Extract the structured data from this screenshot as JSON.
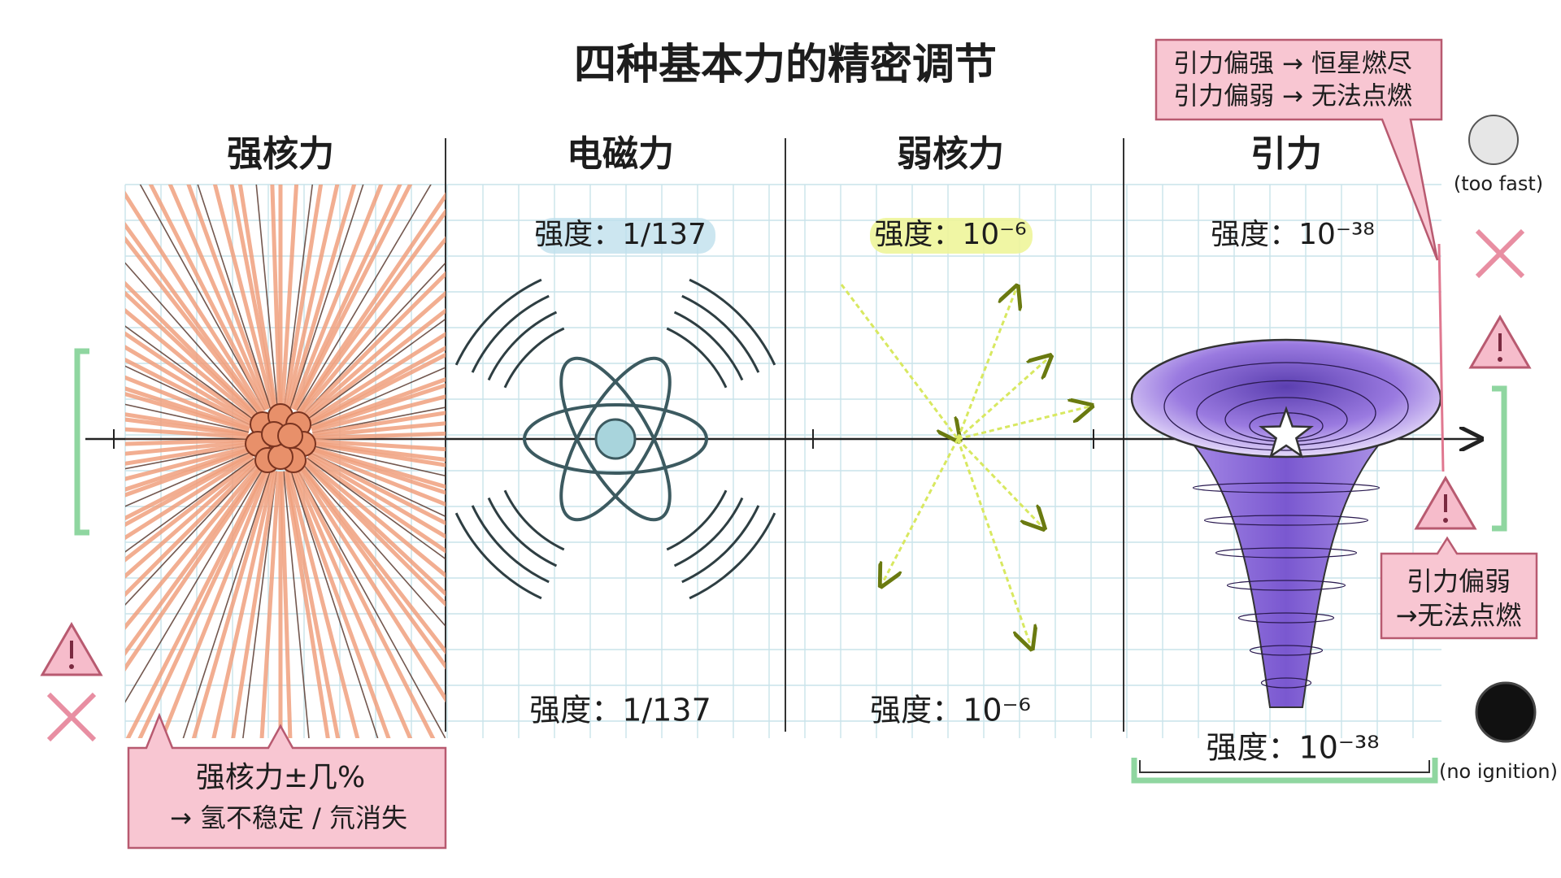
{
  "title": "四种基本力的精密调节",
  "panels": [
    {
      "label": "强核力"
    },
    {
      "label": "电磁力",
      "strength_top": "强度：1/137",
      "strength_bottom": "强度：1/137"
    },
    {
      "label": "弱核力",
      "strength_top": "强度：10⁻⁶",
      "strength_bottom": "强度：10⁻⁶"
    },
    {
      "label": "引力",
      "strength_top": "强度：10⁻³⁸",
      "strength_bottom": "强度：10⁻³⁸"
    }
  ],
  "callouts": {
    "strong": [
      "强核力±几%",
      "→ 氢不稳定 / 氘消失"
    ],
    "gravity_top": [
      "引力偏强 → 恒星燃尽",
      "引力偏弱 → 无法点燃"
    ],
    "gravity_right": [
      "引力偏弱",
      "→无法点燃"
    ]
  },
  "notes": {
    "too_fast": "(too fast)",
    "no_ignition": "(no ignition)"
  }
}
